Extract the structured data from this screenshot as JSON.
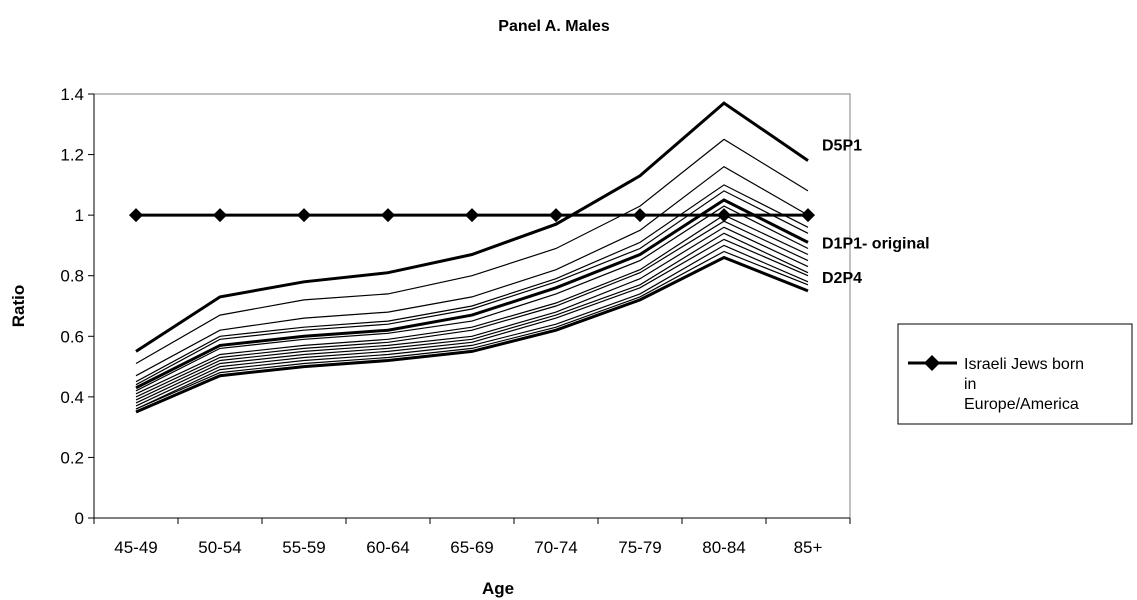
{
  "chart_data": {
    "type": "line",
    "title": "Panel A. Males",
    "xlabel": "Age",
    "ylabel": "Ratio",
    "categories": [
      "45-49",
      "50-54",
      "55-59",
      "60-64",
      "65-69",
      "70-74",
      "75-79",
      "80-84",
      "85+"
    ],
    "ylim": [
      0,
      1.4
    ],
    "yticks": [
      "0",
      "0.2",
      "0.4",
      "0.6",
      "0.8",
      "1",
      "1.2",
      "1.4"
    ],
    "grid": false,
    "legend_position": "right",
    "legend": {
      "label": "Israeli Jews born in Europe/America"
    },
    "reference_series": {
      "name": "Israeli Jews born in Europe/America",
      "values": [
        1,
        1,
        1,
        1,
        1,
        1,
        1,
        1,
        1
      ],
      "marker": "diamond"
    },
    "highlighted_series": [
      {
        "label": "D5P1",
        "values": [
          0.55,
          0.73,
          0.78,
          0.81,
          0.87,
          0.97,
          1.13,
          1.37,
          1.18
        ]
      },
      {
        "label": "D1P1- original",
        "values": [
          0.43,
          0.57,
          0.6,
          0.62,
          0.67,
          0.76,
          0.87,
          1.05,
          0.91
        ]
      },
      {
        "label": "D2P4",
        "values": [
          0.35,
          0.47,
          0.5,
          0.52,
          0.55,
          0.62,
          0.72,
          0.86,
          0.75
        ]
      }
    ],
    "other_series": [
      [
        0.51,
        0.67,
        0.72,
        0.74,
        0.8,
        0.89,
        1.03,
        1.25,
        1.08
      ],
      [
        0.47,
        0.62,
        0.66,
        0.68,
        0.73,
        0.82,
        0.95,
        1.16,
        1.0
      ],
      [
        0.45,
        0.6,
        0.63,
        0.65,
        0.7,
        0.79,
        0.91,
        1.1,
        0.96
      ],
      [
        0.44,
        0.59,
        0.62,
        0.64,
        0.69,
        0.78,
        0.89,
        1.08,
        0.94
      ],
      [
        0.42,
        0.56,
        0.59,
        0.61,
        0.65,
        0.74,
        0.85,
        1.03,
        0.89
      ],
      [
        0.41,
        0.54,
        0.57,
        0.59,
        0.63,
        0.71,
        0.82,
        1.0,
        0.87
      ],
      [
        0.4,
        0.53,
        0.56,
        0.58,
        0.62,
        0.7,
        0.81,
        0.98,
        0.85
      ],
      [
        0.39,
        0.52,
        0.55,
        0.57,
        0.6,
        0.68,
        0.79,
        0.96,
        0.83
      ],
      [
        0.38,
        0.51,
        0.54,
        0.56,
        0.59,
        0.67,
        0.77,
        0.94,
        0.81
      ],
      [
        0.37,
        0.5,
        0.53,
        0.55,
        0.58,
        0.66,
        0.76,
        0.92,
        0.8
      ],
      [
        0.36,
        0.49,
        0.52,
        0.54,
        0.57,
        0.64,
        0.74,
        0.9,
        0.78
      ],
      [
        0.36,
        0.48,
        0.51,
        0.53,
        0.56,
        0.63,
        0.73,
        0.88,
        0.77
      ]
    ]
  }
}
